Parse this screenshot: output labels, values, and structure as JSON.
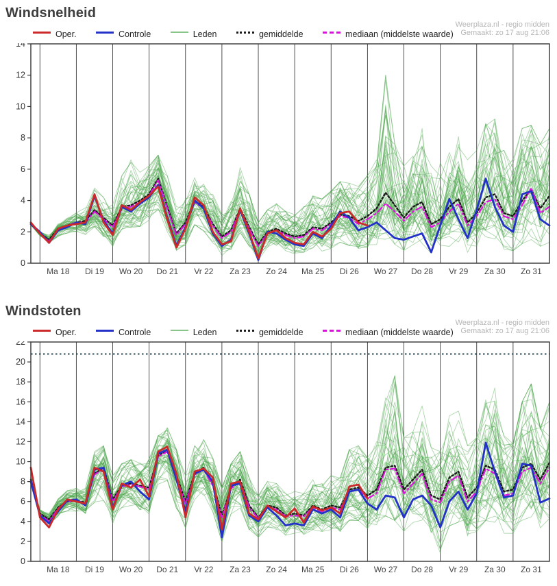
{
  "credit": {
    "line1": "Weerplaza.nl - regio midden",
    "line2": "Gemaakt: zo 17 aug 21:06"
  },
  "legend": [
    {
      "key": "oper",
      "label": "Oper."
    },
    {
      "key": "controle",
      "label": "Controle"
    },
    {
      "key": "leden",
      "label": "Leden"
    },
    {
      "key": "gemiddelde",
      "label": "gemiddelde"
    },
    {
      "key": "mediaan",
      "label": "mediaan (middelste waarde)"
    }
  ],
  "colors": {
    "oper": "#cc2a2a",
    "controle": "#2331c8",
    "leden": "#4aa44a",
    "gemiddelde": "#1a1a1a",
    "mediaan": "#dd11dd",
    "threshold": "#2b4a55",
    "axis": "#333333",
    "grid": "#3a3a3a",
    "credit_text": "#b6b6b6"
  },
  "chart_data": [
    {
      "type": "line",
      "title": "Windsnelheid",
      "ylim": [
        0,
        14
      ],
      "yticks": [
        0,
        2,
        4,
        6,
        8,
        10,
        12,
        14
      ],
      "x_day_labels": [
        "Ma 18",
        "Di 19",
        "Wo 20",
        "Do 21",
        "Vr 22",
        "Za 23",
        "Zo 24",
        "Ma 25",
        "Di 26",
        "Wo 27",
        "Do 28",
        "Vr 29",
        "Za 30",
        "Zo 31"
      ],
      "points_per_day": 4,
      "lead_points": 1,
      "grid": "vertical-daily",
      "legend_position": "top",
      "series": [
        {
          "name": "Oper.",
          "role": "oper",
          "values": [
            2.6,
            1.9,
            1.3,
            2.2,
            2.4,
            2.5,
            2.6,
            4.4,
            2.6,
            1.8,
            3.7,
            3.4,
            3.9,
            4.3,
            4.9,
            2.8,
            1.0,
            2.2,
            4.2,
            3.7,
            2.0,
            1.2,
            1.4,
            3.5,
            2.0,
            0.3,
            1.9,
            2.1,
            1.6,
            1.3,
            1.2,
            2.0,
            1.7,
            2.2,
            3.2,
            3.3,
            2.6,
            2.4
          ]
        },
        {
          "name": "Controle",
          "role": "controle",
          "values": [
            2.5,
            2.0,
            1.3,
            2.1,
            2.3,
            2.6,
            2.5,
            4.3,
            2.7,
            1.9,
            3.6,
            3.3,
            3.8,
            4.2,
            5.0,
            2.9,
            1.1,
            2.3,
            4.0,
            3.5,
            1.9,
            1.1,
            1.5,
            3.4,
            1.9,
            0.2,
            2.0,
            1.9,
            1.5,
            1.2,
            1.1,
            1.9,
            1.6,
            2.4,
            3.3,
            2.9,
            2.1,
            2.3,
            2.6,
            2.1,
            1.6,
            1.5,
            1.7,
            1.9,
            0.7,
            2.4,
            4.1,
            2.8,
            1.6,
            3.4,
            5.4,
            3.6,
            2.4,
            2.0,
            4.4,
            4.6,
            2.8,
            2.4
          ]
        },
        {
          "name": "gemiddelde",
          "role": "gemiddelde",
          "values": [
            2.5,
            1.9,
            1.5,
            2.2,
            2.4,
            2.6,
            2.7,
            3.4,
            2.9,
            2.4,
            3.6,
            3.7,
            4.0,
            4.4,
            5.4,
            3.6,
            1.9,
            2.6,
            4.0,
            3.6,
            2.5,
            1.7,
            2.1,
            3.5,
            2.3,
            1.2,
            2.0,
            2.2,
            1.9,
            1.7,
            1.8,
            2.3,
            2.2,
            2.6,
            3.1,
            3.0,
            2.7,
            3.0,
            3.5,
            4.5,
            3.7,
            2.9,
            3.6,
            3.9,
            2.5,
            2.8,
            3.6,
            4.1,
            2.6,
            3.2,
            4.2,
            4.4,
            3.2,
            3.0,
            4.0,
            4.7,
            3.5,
            4.3
          ]
        },
        {
          "name": "mediaan (middelste waarde)",
          "role": "mediaan",
          "values": [
            2.5,
            1.9,
            1.4,
            2.1,
            2.4,
            2.6,
            2.6,
            3.3,
            2.8,
            2.3,
            3.5,
            3.6,
            3.9,
            4.3,
            5.3,
            3.5,
            1.8,
            2.5,
            3.9,
            3.5,
            2.4,
            1.6,
            2.0,
            3.4,
            2.2,
            1.1,
            1.9,
            2.1,
            1.8,
            1.6,
            1.7,
            2.2,
            2.1,
            2.5,
            3.0,
            2.9,
            2.5,
            2.8,
            3.2,
            3.8,
            3.3,
            2.7,
            3.3,
            3.6,
            2.3,
            2.6,
            3.3,
            3.8,
            2.4,
            3.0,
            3.9,
            4.1,
            3.0,
            2.8,
            3.7,
            4.8,
            3.2,
            3.6
          ]
        }
      ],
      "ensemble": {
        "name": "Leden",
        "count": 50,
        "lower": [
          2.0,
          1.3,
          0.9,
          1.3,
          1.7,
          1.9,
          1.8,
          2.2,
          1.8,
          1.2,
          2.3,
          2.4,
          2.5,
          2.9,
          3.6,
          2.0,
          0.9,
          1.3,
          2.6,
          2.2,
          1.4,
          0.6,
          1.0,
          2.1,
          1.2,
          0.2,
          0.9,
          1.1,
          0.9,
          0.7,
          0.8,
          1.1,
          0.9,
          1.1,
          1.5,
          1.3,
          1.1,
          1.2,
          1.4,
          1.8,
          1.3,
          1.0,
          1.4,
          1.5,
          0.8,
          1.0,
          1.3,
          1.6,
          0.8,
          1.1,
          1.6,
          1.8,
          1.1,
          1.0,
          1.5,
          1.8,
          1.3,
          1.6
        ],
        "upper": [
          3.1,
          2.6,
          2.3,
          2.8,
          3.1,
          3.4,
          3.6,
          4.8,
          4.2,
          3.8,
          5.6,
          6.6,
          5.8,
          6.2,
          6.9,
          5.6,
          3.6,
          4.2,
          5.6,
          5.2,
          4.4,
          3.1,
          4.0,
          6.1,
          4.4,
          2.6,
          3.4,
          3.8,
          3.3,
          3.1,
          3.6,
          4.3,
          4.1,
          4.6,
          5.2,
          5.1,
          4.9,
          5.6,
          6.6,
          12.0,
          7.6,
          6.2,
          7.2,
          8.6,
          6.2,
          6.6,
          7.6,
          8.2,
          6.6,
          7.2,
          8.9,
          9.2,
          7.2,
          7.1,
          8.6,
          8.8,
          7.6,
          8.6
        ]
      }
    },
    {
      "type": "line",
      "title": "Windstoten",
      "ylim": [
        0,
        22
      ],
      "yticks": [
        0,
        2,
        4,
        6,
        8,
        10,
        12,
        14,
        16,
        18,
        20,
        22
      ],
      "threshold": 20.8,
      "x_day_labels": [
        "Ma 18",
        "Di 19",
        "Wo 20",
        "Do 21",
        "Vr 22",
        "Za 23",
        "Zo 24",
        "Ma 25",
        "Di 26",
        "Wo 27",
        "Do 28",
        "Vr 29",
        "Za 30",
        "Zo 31"
      ],
      "points_per_day": 4,
      "lead_points": 1,
      "grid": "vertical-daily",
      "legend_position": "top",
      "series": [
        {
          "name": "Oper.",
          "role": "oper",
          "values": [
            9.4,
            4.4,
            3.4,
            5.2,
            6.2,
            6.0,
            5.8,
            9.4,
            9.0,
            5.2,
            7.8,
            7.4,
            8.2,
            6.5,
            11.0,
            11.5,
            8.8,
            4.4,
            9.0,
            9.3,
            8.4,
            3.2,
            7.8,
            8.0,
            4.8,
            4.2,
            5.6,
            5.0,
            4.4,
            5.3,
            3.9,
            5.5,
            5.1,
            5.4,
            4.8,
            7.5,
            7.7,
            6.3
          ]
        },
        {
          "name": "Controle",
          "role": "controle",
          "values": [
            8.0,
            4.6,
            3.8,
            5.0,
            6.1,
            6.2,
            5.6,
            9.2,
            9.4,
            5.4,
            7.6,
            8.0,
            7.0,
            6.2,
            10.8,
            11.2,
            8.2,
            5.0,
            8.8,
            9.2,
            8.0,
            2.4,
            7.6,
            7.8,
            4.6,
            4.0,
            5.4,
            4.6,
            3.6,
            3.8,
            3.6,
            5.2,
            4.8,
            5.2,
            4.4,
            7.0,
            7.2,
            5.8,
            5.2,
            6.6,
            6.4,
            4.4,
            6.2,
            6.6,
            5.6,
            3.4,
            6.0,
            7.0,
            5.2,
            6.8,
            11.9,
            9.0,
            6.4,
            6.6,
            9.8,
            9.6,
            5.9,
            6.3
          ]
        },
        {
          "name": "gemiddelde",
          "role": "gemiddelde",
          "values": [
            8.2,
            4.8,
            4.2,
            5.4,
            6.0,
            6.1,
            5.9,
            8.8,
            9.4,
            6.2,
            7.6,
            7.8,
            7.6,
            7.4,
            10.6,
            11.2,
            8.6,
            6.0,
            8.8,
            9.4,
            7.8,
            4.6,
            7.4,
            8.2,
            5.6,
            4.4,
            5.6,
            5.4,
            4.6,
            4.8,
            4.6,
            5.6,
            5.2,
            5.6,
            5.4,
            7.2,
            7.4,
            6.6,
            7.2,
            9.4,
            9.6,
            7.2,
            8.2,
            9.2,
            6.6,
            6.2,
            8.4,
            9.0,
            6.4,
            7.4,
            9.6,
            9.2,
            7.0,
            7.2,
            9.4,
            9.8,
            8.2,
            9.9
          ]
        },
        {
          "name": "mediaan (middelste waarde)",
          "role": "mediaan",
          "values": [
            8.1,
            4.7,
            4.0,
            5.3,
            6.0,
            6.1,
            5.8,
            8.7,
            9.3,
            6.0,
            7.5,
            7.7,
            7.5,
            7.2,
            10.5,
            11.0,
            8.4,
            5.8,
            8.7,
            9.2,
            7.6,
            4.4,
            7.3,
            8.0,
            5.4,
            4.3,
            5.5,
            5.2,
            4.5,
            4.6,
            4.5,
            5.4,
            5.0,
            5.4,
            5.2,
            7.0,
            7.2,
            6.3,
            6.8,
            9.2,
            9.3,
            6.8,
            7.8,
            8.8,
            6.2,
            5.9,
            8.0,
            8.6,
            6.0,
            7.0,
            9.3,
            8.8,
            6.6,
            6.8,
            9.0,
            9.4,
            7.8,
            9.4
          ]
        }
      ],
      "ensemble": {
        "name": "Leden",
        "count": 50,
        "lower": [
          6.8,
          3.4,
          2.8,
          3.8,
          4.6,
          4.8,
          4.4,
          6.0,
          6.4,
          4.0,
          5.6,
          5.8,
          5.4,
          5.0,
          8.0,
          8.4,
          5.6,
          3.6,
          6.2,
          6.6,
          5.2,
          2.2,
          5.0,
          5.6,
          3.4,
          2.6,
          3.6,
          3.4,
          2.8,
          3.0,
          2.8,
          3.4,
          3.2,
          3.4,
          3.2,
          4.4,
          4.4,
          3.6,
          4.0,
          5.0,
          4.6,
          3.4,
          4.2,
          4.6,
          3.2,
          1.2,
          4.0,
          4.4,
          2.8,
          3.4,
          4.6,
          4.4,
          3.2,
          3.2,
          4.6,
          4.8,
          3.8,
          4.8
        ],
        "upper": [
          10.2,
          6.4,
          5.8,
          7.0,
          7.6,
          7.6,
          7.4,
          11.0,
          11.6,
          8.6,
          9.8,
          10.2,
          10.0,
          10.4,
          12.6,
          13.4,
          11.2,
          8.6,
          11.6,
          12.2,
          10.4,
          7.4,
          9.8,
          11.0,
          8.4,
          6.6,
          8.0,
          7.8,
          6.8,
          7.0,
          6.8,
          8.2,
          7.8,
          8.6,
          8.4,
          11.2,
          11.6,
          10.4,
          12.0,
          16.4,
          18.6,
          12.4,
          13.0,
          15.6,
          11.4,
          11.0,
          14.6,
          15.2,
          11.6,
          12.4,
          16.2,
          17.4,
          12.6,
          11.8,
          16.0,
          17.8,
          13.4,
          16.0
        ]
      }
    }
  ]
}
